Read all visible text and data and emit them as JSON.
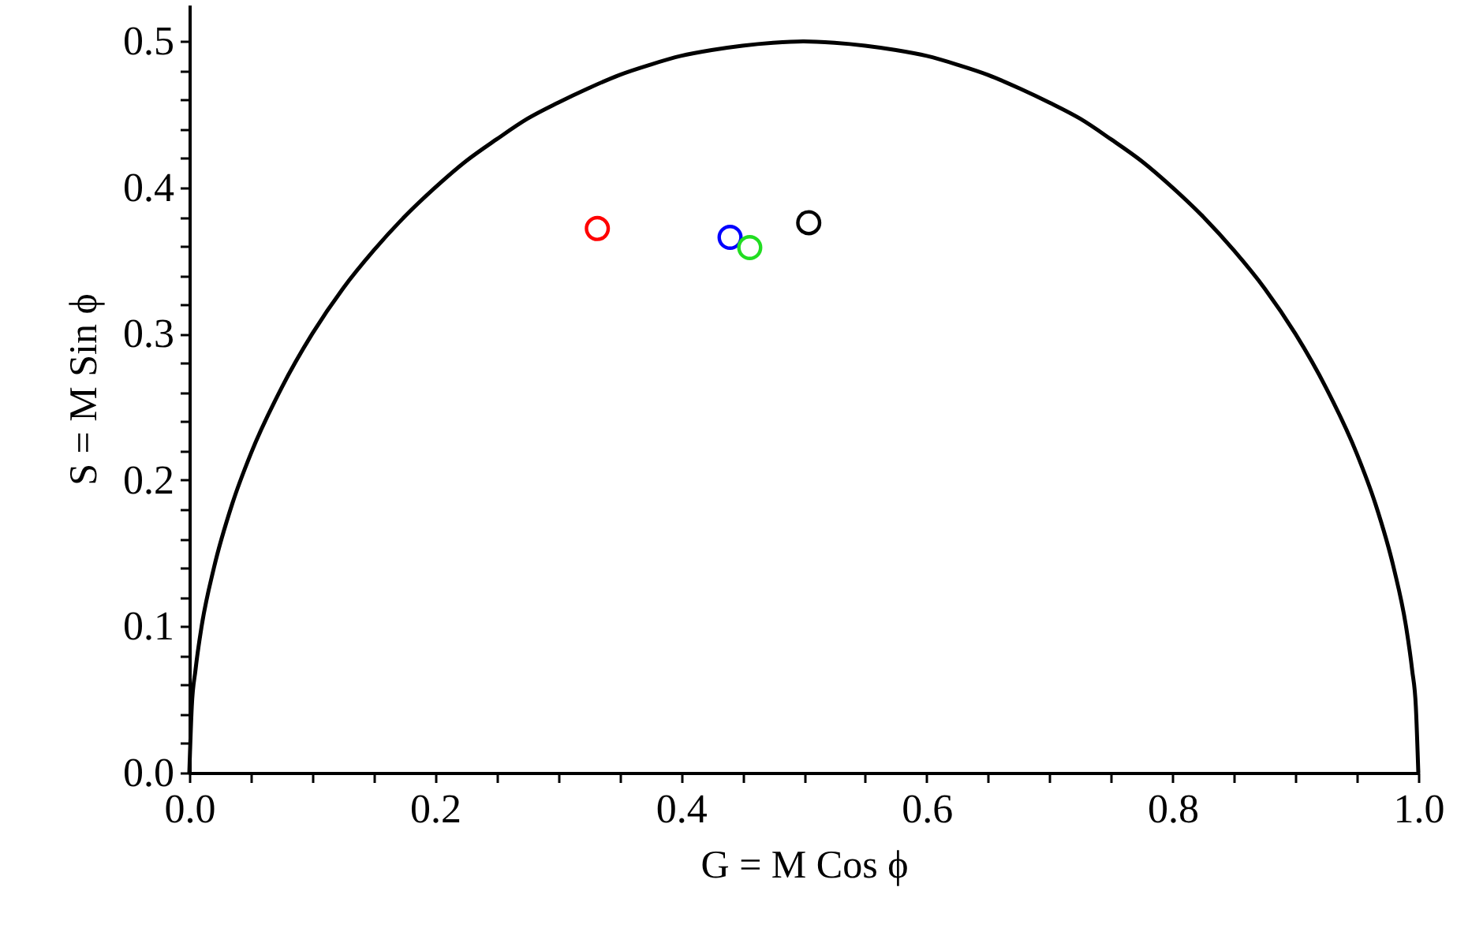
{
  "chart_data": {
    "type": "scatter",
    "xlabel": "G = M Cos ϕ",
    "ylabel": "S = M Sin ϕ",
    "xlim": [
      0,
      1
    ],
    "ylim": [
      0,
      0.525
    ],
    "xticks": [
      {
        "value": 0,
        "label": "0.0"
      },
      {
        "value": 0.05,
        "label": null
      },
      {
        "value": 0.1,
        "label": null
      },
      {
        "value": 0.15,
        "label": null
      },
      0.2,
      {
        "value": 0.25,
        "label": null
      },
      {
        "value": 0.3,
        "label": null
      },
      {
        "value": 0.35,
        "label": null
      },
      0.4,
      {
        "value": 0.45,
        "label": null
      },
      {
        "value": 0.5,
        "label": null
      },
      {
        "value": 0.55,
        "label": null
      },
      0.6,
      {
        "value": 0.65,
        "label": null
      },
      {
        "value": 0.7,
        "label": null
      },
      {
        "value": 0.75,
        "label": null
      },
      0.8,
      {
        "value": 0.85,
        "label": null
      },
      {
        "value": 0.9,
        "label": null
      },
      {
        "value": 0.95,
        "label": null
      },
      {
        "value": 1,
        "label": "1.0"
      }
    ],
    "yticks": [
      {
        "value": 0,
        "label": "0.0"
      },
      {
        "value": 0.02,
        "label": null
      },
      {
        "value": 0.04,
        "label": null
      },
      {
        "value": 0.06,
        "label": null
      },
      {
        "value": 0.08,
        "label": null
      },
      0.1,
      {
        "value": 0.12,
        "label": null
      },
      {
        "value": 0.14,
        "label": null
      },
      {
        "value": 0.16,
        "label": null
      },
      {
        "value": 0.18,
        "label": null
      },
      0.2,
      {
        "value": 0.22,
        "label": null
      },
      {
        "value": 0.24,
        "label": null
      },
      {
        "value": 0.26,
        "label": null
      },
      {
        "value": 0.28,
        "label": null
      },
      0.3,
      {
        "value": 0.32,
        "label": null
      },
      {
        "value": 0.34,
        "label": null
      },
      {
        "value": 0.36,
        "label": null
      },
      {
        "value": 0.38,
        "label": null
      },
      0.4,
      {
        "value": 0.42,
        "label": null
      },
      {
        "value": 0.44,
        "label": null
      },
      {
        "value": 0.46,
        "label": null
      },
      {
        "value": 0.48,
        "label": null
      },
      0.5
    ],
    "marker": "circle",
    "line_style": "solid",
    "grid": false,
    "series": [
      {
        "type": "line",
        "color": "#000000",
        "marker": "none",
        "x": [
          0,
          0.002,
          0.005,
          0.01,
          0.02,
          0.035,
          0.05,
          0.075,
          0.1,
          0.125,
          0.15,
          0.175,
          0.2,
          0.225,
          0.25,
          0.275,
          0.3,
          0.325,
          0.35,
          0.375,
          0.4,
          0.425,
          0.45,
          0.475,
          0.5,
          0.525,
          0.55,
          0.575,
          0.6,
          0.625,
          0.65,
          0.675,
          0.7,
          0.725,
          0.75,
          0.775,
          0.8,
          0.825,
          0.85,
          0.875,
          0.9,
          0.925,
          0.95,
          0.965,
          0.98,
          0.99,
          0.995,
          0.998,
          1
        ],
        "values": [
          0,
          0.045,
          0.07,
          0.1,
          0.14,
          0.184,
          0.218,
          0.263,
          0.3,
          0.331,
          0.357,
          0.38,
          0.4,
          0.418,
          0.433,
          0.447,
          0.458,
          0.468,
          0.477,
          0.484,
          0.49,
          0.494,
          0.497,
          0.499,
          0.5,
          0.499,
          0.497,
          0.494,
          0.49,
          0.484,
          0.477,
          0.468,
          0.458,
          0.447,
          0.433,
          0.418,
          0.4,
          0.38,
          0.357,
          0.331,
          0.3,
          0.263,
          0.218,
          0.184,
          0.14,
          0.1,
          0.07,
          0.045,
          0
        ]
      },
      {
        "color": "#ff0000",
        "x": [
          0.332
        ],
        "values": [
          0.372
        ]
      },
      {
        "color": "#0000ff",
        "x": [
          0.44
        ],
        "values": [
          0.366
        ]
      },
      {
        "color": "#22dd22",
        "x": [
          0.456
        ],
        "values": [
          0.359
        ]
      },
      {
        "color": "#000000",
        "x": [
          0.504
        ],
        "values": [
          0.376
        ]
      }
    ]
  }
}
